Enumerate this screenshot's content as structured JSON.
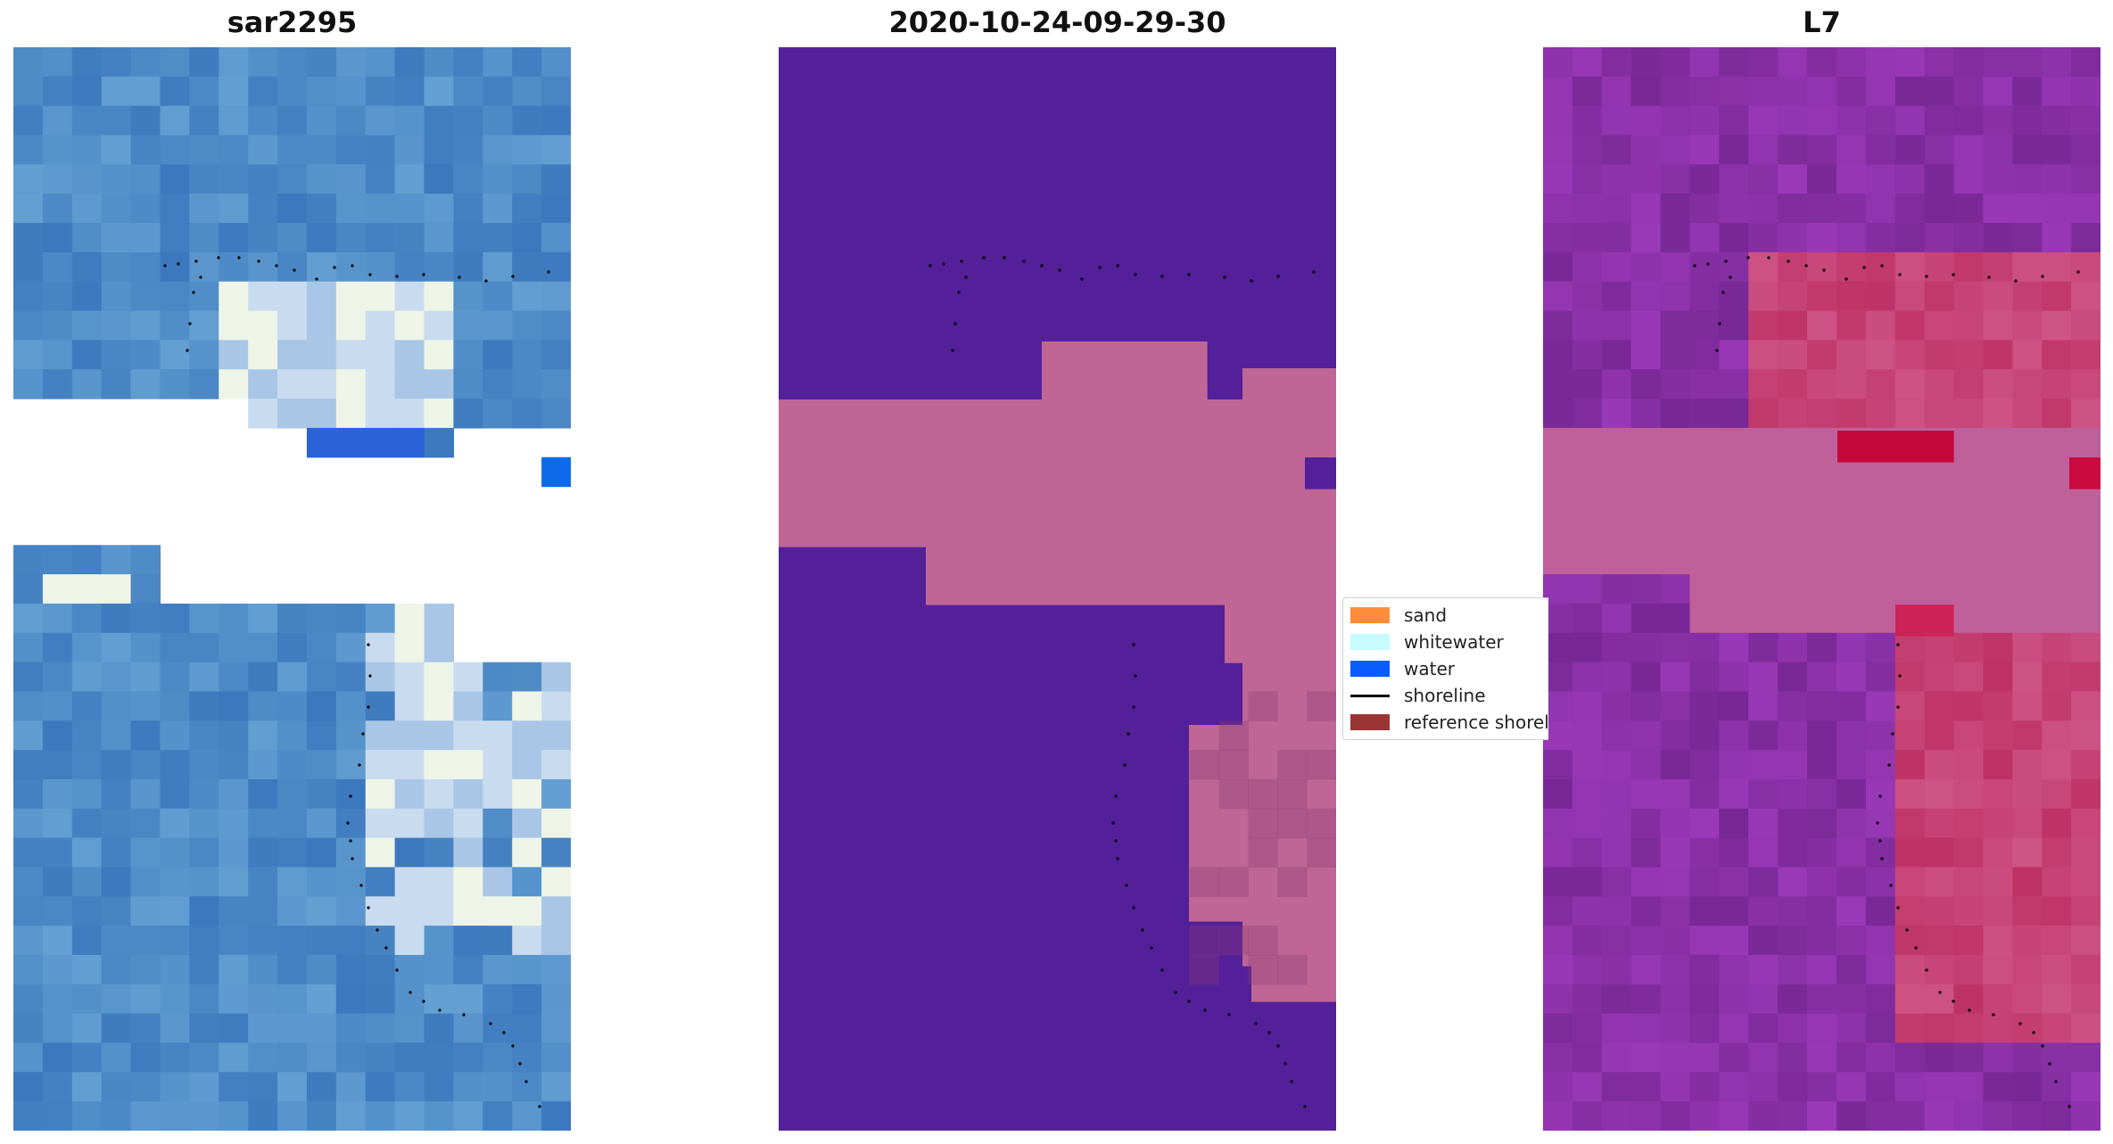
{
  "panels": [
    {
      "title": "sar2295"
    },
    {
      "title": "2020-10-24-09-29-30"
    },
    {
      "title": "L7"
    }
  ],
  "legend": {
    "items": [
      {
        "label": "sand",
        "color": "#ff8c3a",
        "kind": "patch"
      },
      {
        "label": "whitewater",
        "color": "#c6fbff",
        "kind": "patch"
      },
      {
        "label": "water",
        "color": "#0a5cff",
        "kind": "patch"
      },
      {
        "label": "shoreline",
        "color": "#000000",
        "kind": "line"
      },
      {
        "label": "reference shoreline",
        "color": "#9a3535",
        "kind": "patch"
      }
    ]
  },
  "colors": {
    "water_class": "#54209a",
    "sand_class": "#bf6696",
    "rgb_blue": "#4a7fc6",
    "falsecolor_purple": "#8a3aa0",
    "falsecolor_red": "#c8204a"
  }
}
